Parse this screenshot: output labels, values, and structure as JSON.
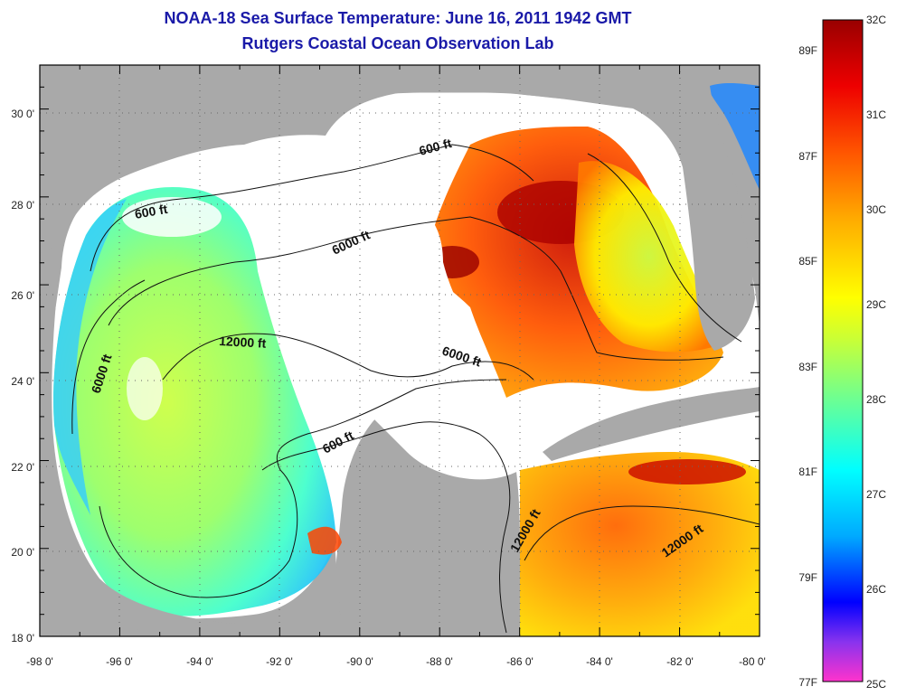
{
  "title": "NOAA-18 Sea Surface Temperature:  June 16, 2011 1942 GMT",
  "subtitle": "Rutgers Coastal Ocean Observation Lab",
  "map": {
    "lon_range": [
      -98,
      -80
    ],
    "lat_range": [
      18,
      31
    ],
    "x_ticks": [
      "-98 0'",
      "-96 0'",
      "-94 0'",
      "-92 0'",
      "-90 0'",
      "-88 0'",
      "-86 0'",
      "-84 0'",
      "-82 0'",
      "-80 0'"
    ],
    "y_ticks": [
      "18 0'",
      "20 0'",
      "22 0'",
      "24 0'",
      "26 0'",
      "28 0'",
      "30 0'"
    ],
    "grid": "dotted",
    "land_color": "#a9a9a9",
    "cloud_color": "#ffffff",
    "contour_labels": [
      "600 ft",
      "600 ft",
      "6000 ft",
      "6000 ft",
      "12000 ft",
      "6000 ft",
      "600 ft",
      "12000 ft",
      "12000 ft"
    ]
  },
  "colorbar": {
    "celsius_labels": [
      "32C",
      "31C",
      "30C",
      "29C",
      "28C",
      "27C",
      "26C",
      "25C"
    ],
    "fahrenheit_labels": [
      "89F",
      "87F",
      "85F",
      "83F",
      "81F",
      "79F",
      "77F"
    ],
    "range_c": [
      25,
      32
    ],
    "colors": [
      "#ff33cc",
      "#8833ee",
      "#0000ff",
      "#00aaff",
      "#00ffff",
      "#66ff99",
      "#ccff33",
      "#ffff00",
      "#ffaa00",
      "#ff5500",
      "#ee0000",
      "#990000"
    ]
  }
}
